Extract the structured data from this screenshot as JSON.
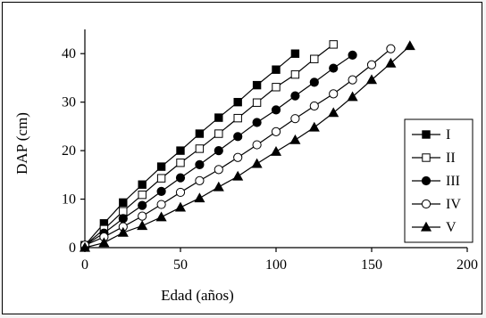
{
  "chart_data": {
    "type": "line",
    "title": "",
    "xlabel": "Edad (años)",
    "ylabel": "DAP (cm)",
    "xlim": [
      0,
      200
    ],
    "ylim": [
      0,
      45
    ],
    "xticks": [
      0,
      50,
      100,
      150,
      200
    ],
    "yticks": [
      0,
      10,
      20,
      30,
      40
    ],
    "grid": false,
    "legend_position": "right",
    "series": [
      {
        "name": "I",
        "marker": "filled-square",
        "x": [
          0,
          10,
          20,
          30,
          40,
          50,
          60,
          70,
          80,
          90,
          100,
          110
        ],
        "y": [
          0.5,
          5.0,
          9.3,
          13.0,
          16.7,
          20.0,
          23.5,
          26.8,
          30.0,
          33.5,
          36.7,
          40.0
        ]
      },
      {
        "name": "II",
        "marker": "open-square",
        "x": [
          0,
          10,
          20,
          30,
          40,
          50,
          60,
          70,
          80,
          90,
          100,
          110,
          120,
          130
        ],
        "y": [
          0.5,
          3.8,
          7.5,
          10.9,
          14.3,
          17.5,
          20.4,
          23.5,
          26.7,
          29.9,
          33.1,
          35.7,
          38.9,
          41.9
        ]
      },
      {
        "name": "III",
        "marker": "filled-circle",
        "x": [
          0,
          10,
          20,
          30,
          40,
          50,
          60,
          70,
          80,
          90,
          100,
          110,
          120,
          130,
          140
        ],
        "y": [
          0.5,
          3.0,
          6.0,
          8.7,
          11.6,
          14.4,
          17.1,
          20.0,
          22.9,
          25.8,
          28.4,
          31.3,
          34.1,
          37.0,
          39.7
        ]
      },
      {
        "name": "IV",
        "marker": "open-circle",
        "x": [
          0,
          10,
          20,
          30,
          40,
          50,
          60,
          70,
          80,
          90,
          100,
          110,
          120,
          130,
          140,
          150,
          160
        ],
        "y": [
          0.5,
          2.2,
          4.3,
          6.5,
          8.9,
          11.4,
          13.8,
          16.1,
          18.6,
          21.2,
          23.9,
          26.6,
          29.2,
          31.7,
          34.6,
          37.7,
          41.0
        ]
      },
      {
        "name": "V",
        "marker": "filled-triangle",
        "x": [
          0,
          10,
          20,
          30,
          40,
          50,
          60,
          70,
          80,
          90,
          100,
          110,
          120,
          130,
          140,
          150,
          160,
          170
        ],
        "y": [
          0.0,
          1.0,
          3.1,
          4.5,
          6.3,
          8.3,
          10.2,
          12.5,
          14.7,
          17.3,
          19.8,
          22.2,
          24.8,
          27.8,
          31.1,
          34.6,
          38.0,
          41.6
        ]
      }
    ]
  }
}
